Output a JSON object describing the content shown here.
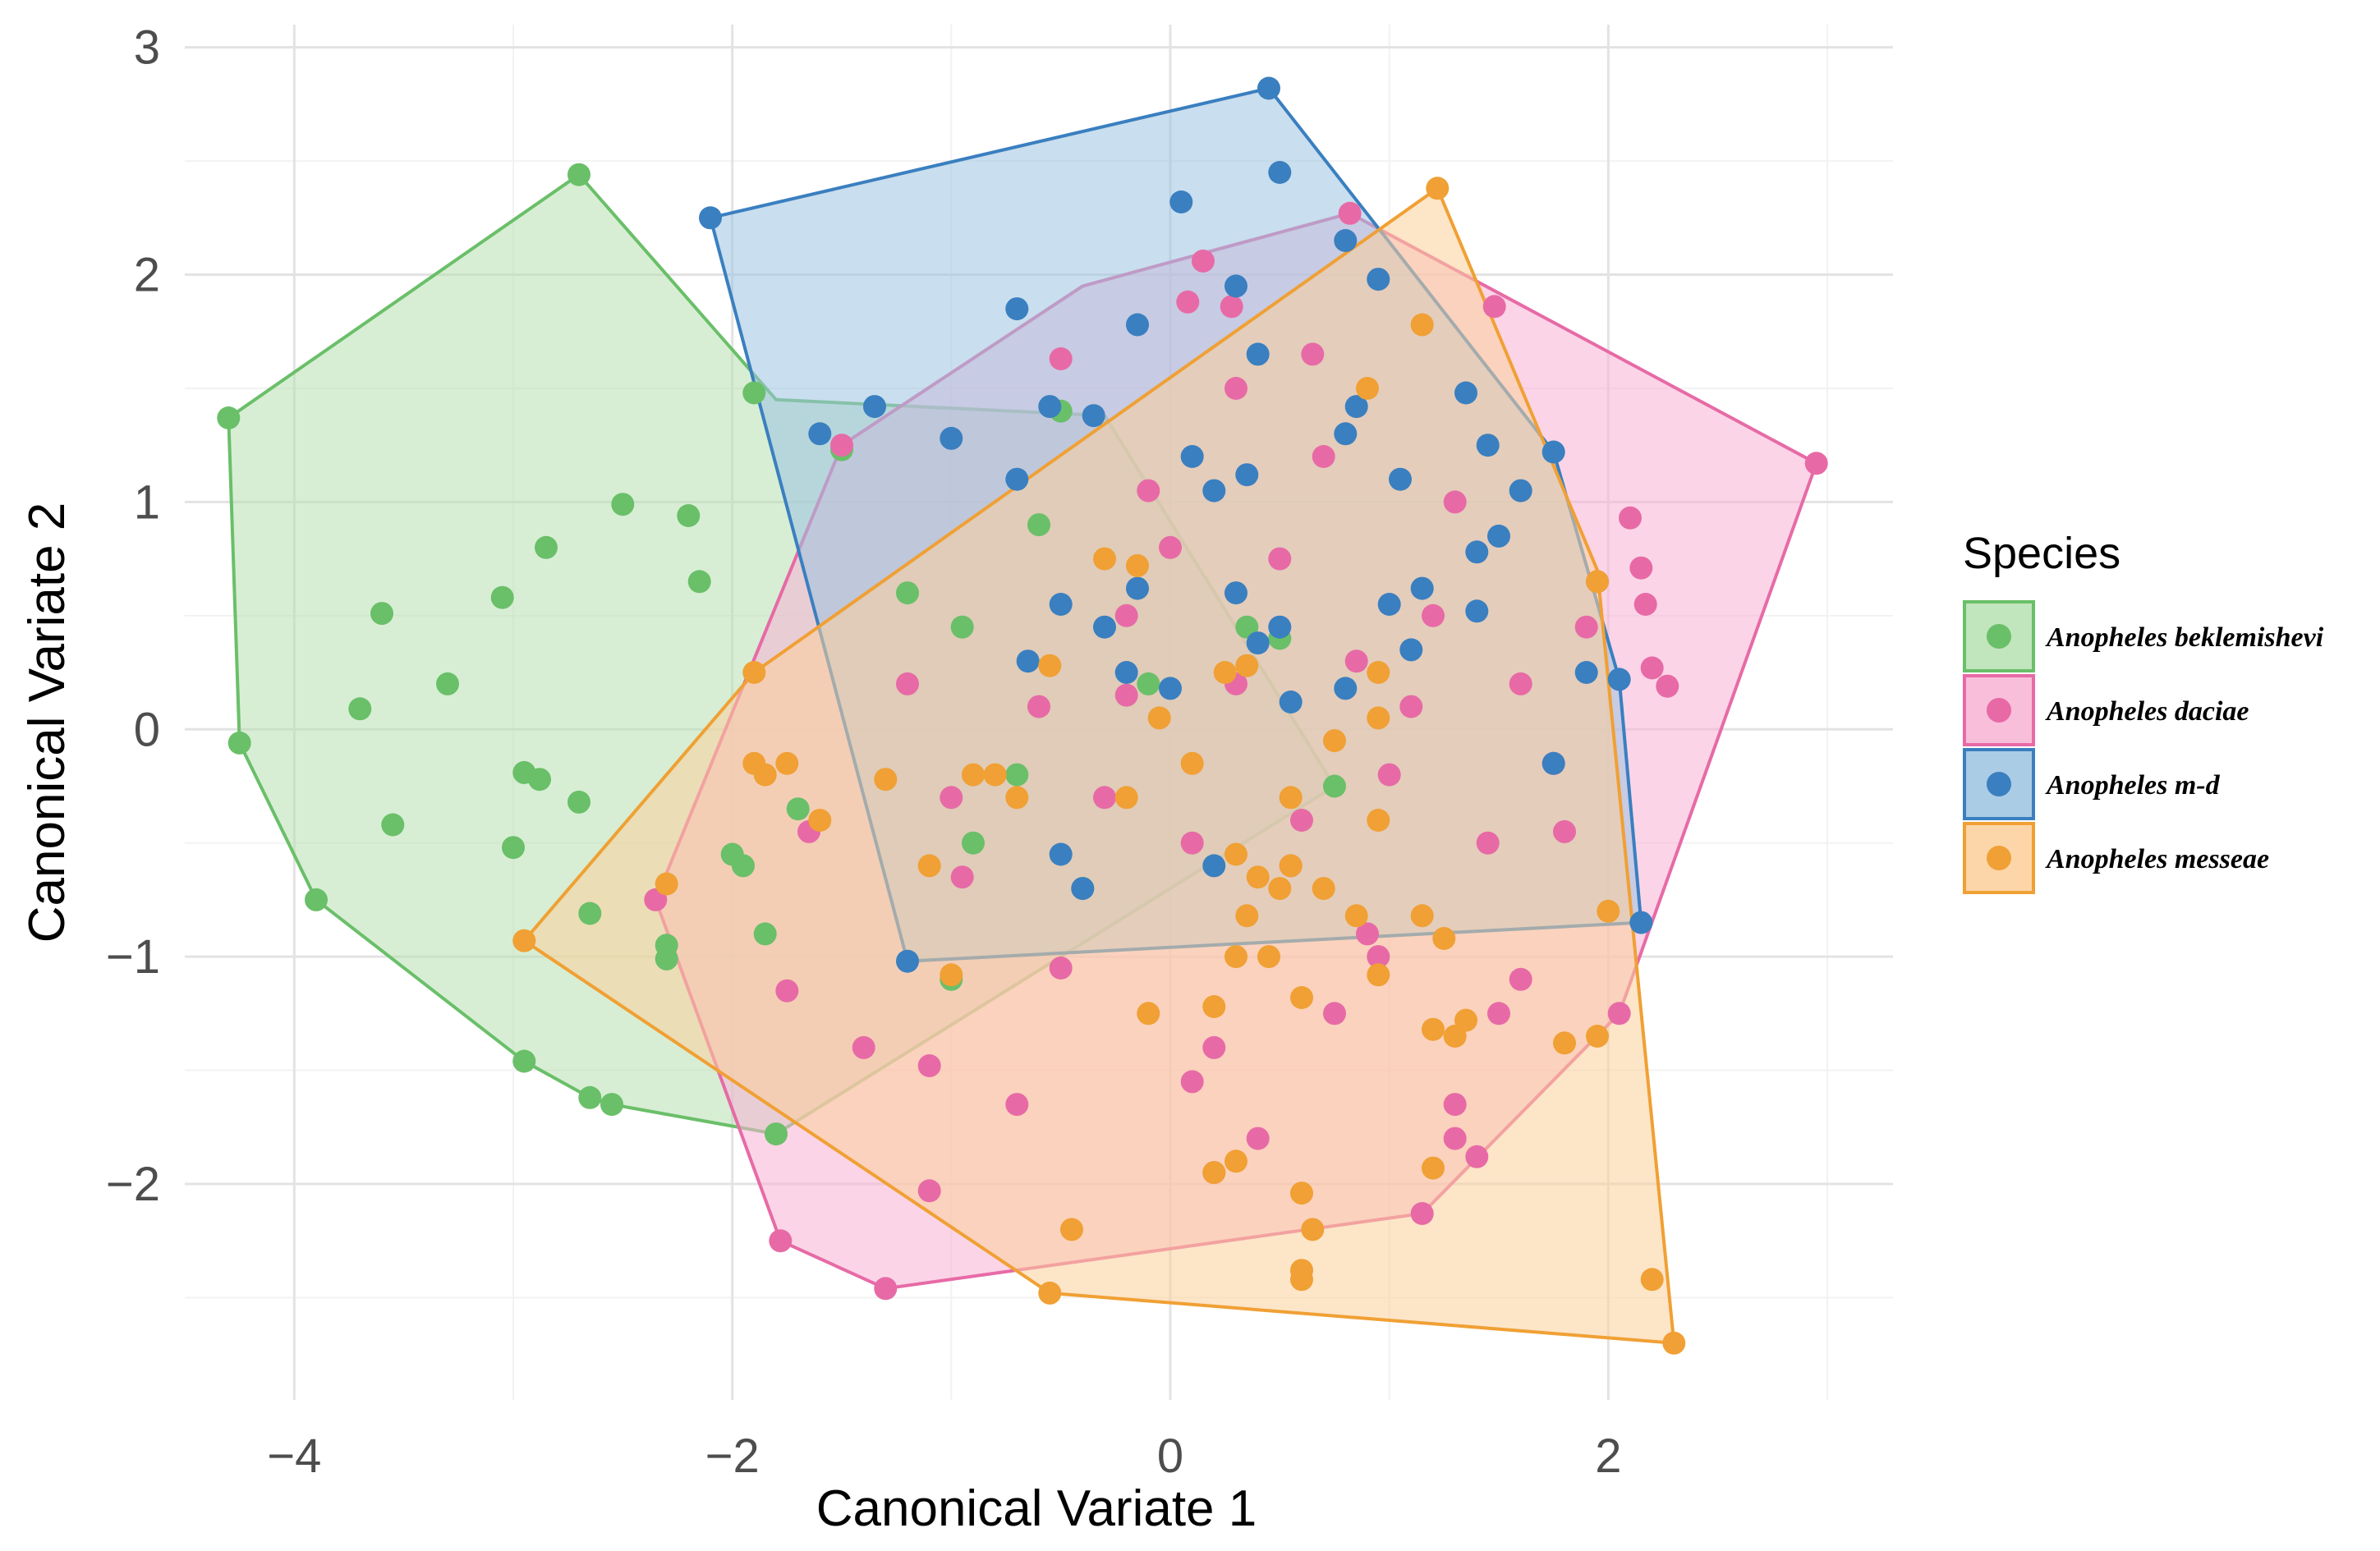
{
  "chart_data": {
    "type": "scatter",
    "title": "",
    "xlabel": "Canonical Variate 1",
    "ylabel": "Canonical Variate 2",
    "xlim": [
      -4.5,
      3.3
    ],
    "ylim": [
      -2.95,
      3.1
    ],
    "x_ticks": [
      -4,
      -2,
      0,
      2
    ],
    "x_tick_labels": [
      "−4",
      "−2",
      "0",
      "2"
    ],
    "y_ticks": [
      -2,
      -1,
      0,
      1,
      2,
      3
    ],
    "y_tick_labels": [
      "−2",
      "−1",
      "0",
      "1",
      "2",
      "3"
    ],
    "grid": true,
    "legend": {
      "title": "Species",
      "position": "right",
      "entries": [
        "Anopheles beklemishevi",
        "Anopheles daciae",
        "Anopheles m-d",
        "Anopheles messeae"
      ]
    },
    "series": [
      {
        "name": "Anopheles beklemishevi",
        "color": "#6abf69",
        "fill": "#b6e0b0",
        "hull": [
          [
            -4.3,
            1.37
          ],
          [
            -2.7,
            2.44
          ],
          [
            -1.8,
            1.45
          ],
          [
            -0.3,
            1.38
          ],
          [
            0.75,
            -0.25
          ],
          [
            -1.8,
            -1.78
          ],
          [
            -2.55,
            -1.65
          ],
          [
            -2.65,
            -1.62
          ],
          [
            -2.95,
            -1.46
          ],
          [
            -3.9,
            -0.75
          ],
          [
            -4.25,
            -0.06
          ]
        ],
        "points": [
          [
            -4.3,
            1.37
          ],
          [
            -2.7,
            2.44
          ],
          [
            -4.25,
            -0.06
          ],
          [
            -3.9,
            -0.75
          ],
          [
            -2.95,
            -1.46
          ],
          [
            -2.65,
            -1.62
          ],
          [
            -2.55,
            -1.65
          ],
          [
            -1.8,
            -1.78
          ],
          [
            -2.5,
            0.99
          ],
          [
            -2.2,
            0.94
          ],
          [
            -2.85,
            0.8
          ],
          [
            -2.15,
            0.65
          ],
          [
            -3.6,
            0.51
          ],
          [
            -3.05,
            0.58
          ],
          [
            -3.3,
            0.2
          ],
          [
            -3.7,
            0.09
          ],
          [
            -2.95,
            -0.19
          ],
          [
            -2.88,
            -0.22
          ],
          [
            -2.7,
            -0.32
          ],
          [
            -3.55,
            -0.42
          ],
          [
            -3.0,
            -0.52
          ],
          [
            -2.65,
            -0.81
          ],
          [
            -2.3,
            -0.95
          ],
          [
            -2.3,
            -1.01
          ],
          [
            -1.9,
            1.48
          ],
          [
            -1.5,
            1.23
          ],
          [
            -1.95,
            -0.6
          ],
          [
            -1.85,
            -0.9
          ],
          [
            -1.7,
            -0.35
          ],
          [
            -2.0,
            -0.55
          ],
          [
            -1.2,
            0.6
          ],
          [
            -0.95,
            0.45
          ],
          [
            -0.9,
            -0.5
          ],
          [
            -0.7,
            -0.2
          ],
          [
            -0.5,
            1.4
          ],
          [
            -0.6,
            0.9
          ],
          [
            0.5,
            0.4
          ],
          [
            0.35,
            0.45
          ],
          [
            0.75,
            -0.25
          ],
          [
            -1.0,
            -1.1
          ],
          [
            -0.4,
            -0.7
          ],
          [
            -0.1,
            0.2
          ]
        ]
      },
      {
        "name": "Anopheles daciae",
        "color": "#e76aa6",
        "fill": "#f7b3d3",
        "hull": [
          [
            -0.4,
            1.95
          ],
          [
            0.82,
            2.27
          ],
          [
            2.95,
            1.17
          ],
          [
            2.05,
            -1.25
          ],
          [
            1.15,
            -2.13
          ],
          [
            -1.3,
            -2.46
          ],
          [
            -1.78,
            -2.25
          ],
          [
            -2.35,
            -0.75
          ],
          [
            -1.5,
            1.25
          ]
        ],
        "points": [
          [
            0.82,
            2.27
          ],
          [
            2.95,
            1.17
          ],
          [
            2.05,
            -1.25
          ],
          [
            1.15,
            -2.13
          ],
          [
            -1.3,
            -2.46
          ],
          [
            -1.78,
            -2.25
          ],
          [
            -2.35,
            -0.75
          ],
          [
            -1.5,
            1.25
          ],
          [
            0.15,
            2.06
          ],
          [
            0.08,
            1.88
          ],
          [
            0.28,
            1.86
          ],
          [
            -0.5,
            1.63
          ],
          [
            0.65,
            1.65
          ],
          [
            1.48,
            1.86
          ],
          [
            2.1,
            0.93
          ],
          [
            2.15,
            0.71
          ],
          [
            2.17,
            0.55
          ],
          [
            2.2,
            0.27
          ],
          [
            2.27,
            0.19
          ],
          [
            1.9,
            0.45
          ],
          [
            1.95,
            0.65
          ],
          [
            1.8,
            -0.45
          ],
          [
            1.6,
            -1.1
          ],
          [
            1.5,
            -1.25
          ],
          [
            1.3,
            -1.65
          ],
          [
            1.3,
            -1.8
          ],
          [
            1.4,
            -1.88
          ],
          [
            0.95,
            -1.0
          ],
          [
            0.75,
            -1.25
          ],
          [
            0.2,
            -1.4
          ],
          [
            0.4,
            -1.8
          ],
          [
            0.2,
            -1.95
          ],
          [
            0.1,
            -1.55
          ],
          [
            -0.5,
            -1.05
          ],
          [
            -0.95,
            -0.65
          ],
          [
            -1.1,
            -1.48
          ],
          [
            -0.7,
            -1.65
          ],
          [
            -1.4,
            -1.4
          ],
          [
            -1.1,
            -2.03
          ],
          [
            -1.75,
            -1.15
          ],
          [
            -1.65,
            -0.45
          ],
          [
            0.0,
            0.8
          ],
          [
            0.3,
            0.2
          ],
          [
            0.5,
            0.75
          ],
          [
            -0.2,
            0.5
          ],
          [
            0.85,
            0.3
          ],
          [
            1.2,
            0.5
          ],
          [
            1.0,
            -0.2
          ],
          [
            0.6,
            -0.4
          ],
          [
            -0.3,
            -0.3
          ],
          [
            -0.2,
            0.15
          ],
          [
            1.45,
            -0.5
          ],
          [
            1.1,
            0.1
          ],
          [
            0.7,
            1.2
          ],
          [
            1.3,
            1.0
          ],
          [
            0.3,
            1.5
          ],
          [
            -0.1,
            1.05
          ],
          [
            -1.2,
            0.2
          ],
          [
            -1.0,
            -0.3
          ],
          [
            0.9,
            -0.9
          ],
          [
            0.55,
            -0.6
          ],
          [
            1.6,
            0.2
          ],
          [
            1.75,
            -0.15
          ],
          [
            -0.6,
            0.1
          ],
          [
            0.1,
            -0.5
          ]
        ]
      },
      {
        "name": "Anopheles m-d",
        "color": "#3a7fc0",
        "fill": "#9cc3e0",
        "hull": [
          [
            -2.1,
            2.25
          ],
          [
            0.45,
            2.82
          ],
          [
            1.75,
            1.22
          ],
          [
            2.05,
            0.22
          ],
          [
            2.15,
            -0.85
          ],
          [
            -1.2,
            -1.02
          ]
        ],
        "points": [
          [
            -2.1,
            2.25
          ],
          [
            0.45,
            2.82
          ],
          [
            1.75,
            1.22
          ],
          [
            2.05,
            0.22
          ],
          [
            2.15,
            -0.85
          ],
          [
            -1.2,
            -1.02
          ],
          [
            0.5,
            2.45
          ],
          [
            0.05,
            2.32
          ],
          [
            0.3,
            1.95
          ],
          [
            -0.7,
            1.85
          ],
          [
            -0.15,
            1.78
          ],
          [
            0.8,
            2.15
          ],
          [
            -1.6,
            1.3
          ],
          [
            -1.35,
            1.42
          ],
          [
            -1.0,
            1.28
          ],
          [
            -0.55,
            1.42
          ],
          [
            -0.35,
            1.38
          ],
          [
            0.4,
            1.65
          ],
          [
            0.1,
            1.2
          ],
          [
            0.95,
            1.98
          ],
          [
            1.45,
            1.25
          ],
          [
            1.35,
            1.48
          ],
          [
            1.6,
            1.05
          ],
          [
            1.4,
            0.78
          ],
          [
            1.5,
            0.85
          ],
          [
            1.4,
            0.52
          ],
          [
            1.15,
            0.62
          ],
          [
            1.0,
            0.55
          ],
          [
            0.85,
            1.42
          ],
          [
            0.8,
            1.3
          ],
          [
            0.35,
            1.12
          ],
          [
            0.2,
            1.05
          ],
          [
            -0.3,
            0.45
          ],
          [
            -0.5,
            0.55
          ],
          [
            0.4,
            0.38
          ],
          [
            0.5,
            0.45
          ],
          [
            0.8,
            0.18
          ],
          [
            0.55,
            0.12
          ],
          [
            0.0,
            0.18
          ],
          [
            -0.2,
            0.25
          ],
          [
            1.9,
            0.25
          ],
          [
            1.75,
            -0.15
          ],
          [
            -0.5,
            -0.55
          ],
          [
            -0.4,
            -0.7
          ],
          [
            0.2,
            -0.6
          ],
          [
            -0.7,
            1.1
          ],
          [
            -0.15,
            0.62
          ],
          [
            -0.65,
            0.3
          ],
          [
            0.3,
            0.6
          ],
          [
            1.05,
            1.1
          ],
          [
            1.1,
            0.35
          ]
        ]
      },
      {
        "name": "Anopheles messeae",
        "color": "#f0a034",
        "fill": "#fbcf9a",
        "hull": [
          [
            1.22,
            2.38
          ],
          [
            1.95,
            0.7
          ],
          [
            2.3,
            -2.7
          ],
          [
            -0.55,
            -2.48
          ],
          [
            -2.95,
            -0.93
          ],
          [
            -1.9,
            0.25
          ]
        ],
        "points": [
          [
            1.22,
            2.38
          ],
          [
            2.3,
            -2.7
          ],
          [
            -0.55,
            -2.48
          ],
          [
            -2.95,
            -0.93
          ],
          [
            -1.9,
            0.25
          ],
          [
            1.15,
            1.78
          ],
          [
            1.95,
            0.65
          ],
          [
            2.0,
            -0.8
          ],
          [
            1.95,
            -1.35
          ],
          [
            1.8,
            -1.38
          ],
          [
            2.2,
            -2.42
          ],
          [
            0.6,
            -2.38
          ],
          [
            0.6,
            -2.42
          ],
          [
            0.65,
            -2.2
          ],
          [
            0.6,
            -2.04
          ],
          [
            -0.45,
            -2.2
          ],
          [
            0.2,
            -1.95
          ],
          [
            0.3,
            -1.9
          ],
          [
            1.2,
            -1.93
          ],
          [
            1.2,
            -1.32
          ],
          [
            1.3,
            -1.35
          ],
          [
            1.35,
            -1.28
          ],
          [
            0.95,
            -1.08
          ],
          [
            0.6,
            -1.18
          ],
          [
            0.3,
            -1.0
          ],
          [
            0.45,
            -1.0
          ],
          [
            0.2,
            -1.22
          ],
          [
            -0.1,
            -1.25
          ],
          [
            0.5,
            -0.7
          ],
          [
            0.7,
            -0.7
          ],
          [
            0.3,
            -0.55
          ],
          [
            0.55,
            -0.3
          ],
          [
            0.75,
            -0.05
          ],
          [
            0.95,
            0.25
          ],
          [
            0.95,
            0.05
          ],
          [
            0.95,
            -0.4
          ],
          [
            1.15,
            -0.82
          ],
          [
            1.25,
            -0.92
          ],
          [
            0.85,
            -0.82
          ],
          [
            0.4,
            -0.65
          ],
          [
            -0.9,
            -0.2
          ],
          [
            -1.0,
            -1.08
          ],
          [
            -1.3,
            -0.22
          ],
          [
            -1.9,
            -0.15
          ],
          [
            -1.75,
            -0.15
          ],
          [
            -2.3,
            -0.68
          ],
          [
            -1.85,
            -0.2
          ],
          [
            -0.55,
            0.28
          ],
          [
            -0.3,
            0.75
          ],
          [
            -0.15,
            0.72
          ],
          [
            0.25,
            0.25
          ],
          [
            0.35,
            0.28
          ],
          [
            -0.05,
            0.05
          ],
          [
            0.1,
            -0.15
          ],
          [
            -0.8,
            -0.2
          ],
          [
            0.35,
            -0.82
          ],
          [
            0.55,
            -0.6
          ],
          [
            0.9,
            1.5
          ],
          [
            -0.7,
            -0.3
          ],
          [
            -1.1,
            -0.6
          ],
          [
            -1.6,
            -0.4
          ],
          [
            -0.2,
            -0.3
          ]
        ]
      }
    ]
  }
}
